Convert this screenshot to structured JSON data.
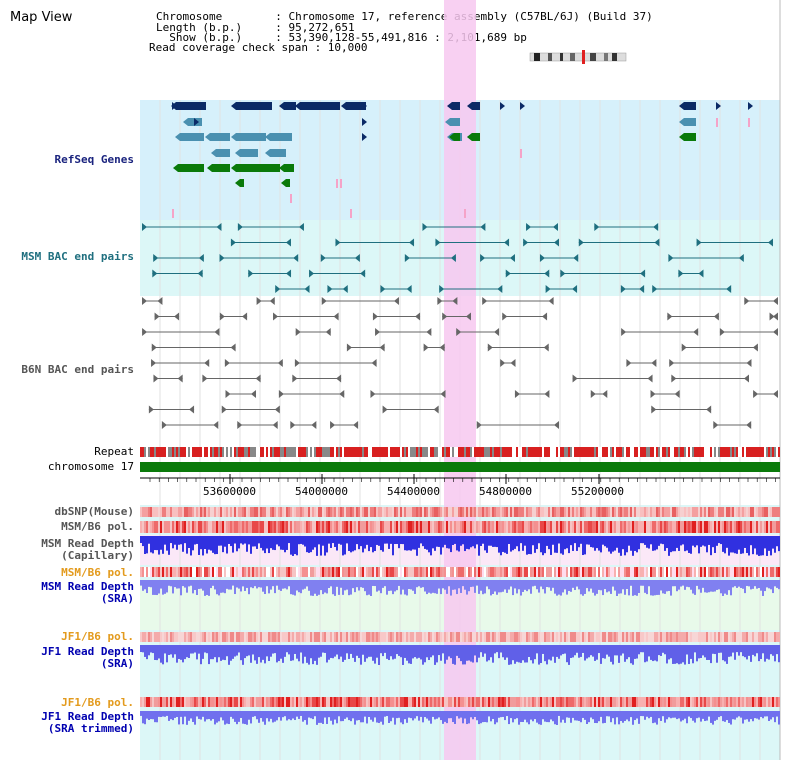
{
  "page": {
    "title": "Map View"
  },
  "info": {
    "line1": "Chromosome        : Chromosome 17, reference assembly (C57BL/6J) (Build 37)",
    "line2": "Length (b.p.)     : 95,272,651",
    "line3": "  Show (b.p.)     : 53,390,128-55,491,816 : 2,101,689 bp",
    "line4": "Read coverage check span : 10,000"
  },
  "tracks": {
    "refseq": "RefSeq Genes",
    "msm_bac": "MSM BAC end pairs",
    "b6n_bac": "B6N BAC end pairs",
    "repeat": "Repeat",
    "chromosome": "chromosome 17",
    "dbsnp": "dbSNP(Mouse)",
    "msm_b6_pol_1": "MSM/B6 pol.",
    "msm_depth_cap_1": "MSM Read Depth",
    "msm_depth_cap_2": "(Capillary)",
    "msm_b6_pol_2": "MSM/B6 pol.",
    "msm_depth_sra_1": "MSM Read Depth",
    "msm_depth_sra_2": "(SRA)",
    "jf1_pol_1": "JF1/B6 pol.",
    "jf1_depth_sra_1": "JF1 Read Depth",
    "jf1_depth_sra_2": "(SRA)",
    "jf1_pol_2": "JF1/B6 pol.",
    "jf1_depth_trim_1": "JF1 Read Depth",
    "jf1_depth_trim_2": "(SRA trimmed)"
  },
  "axis": {
    "ticks": [
      "53600000",
      "54000000",
      "54400000",
      "54800000",
      "55200000"
    ]
  },
  "colors": {
    "highlight": "#f7c8f0",
    "refseq_bg": "#d6f0fb",
    "bac_bg": "#dcf7f7",
    "navy": "#0b2a66",
    "steel": "#4a90b0",
    "green": "#0a7a0a",
    "pink": "#f5a3c8",
    "red": "#e02020",
    "blue": "#3030e0"
  }
}
